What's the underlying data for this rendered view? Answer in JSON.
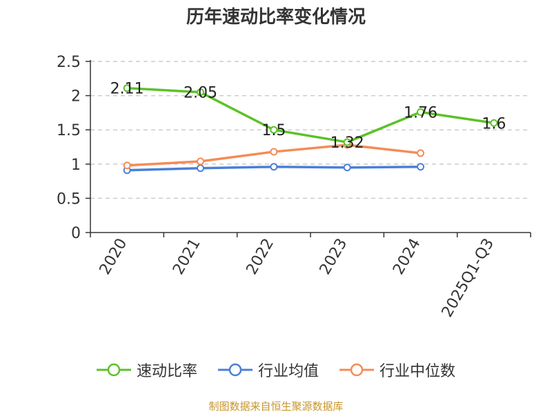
{
  "title": "历年速动比率变化情况",
  "source_note": "制图数据来自恒生聚源数据库",
  "colors": {
    "速动比率": "#5cc227",
    "行业均值": "#4a7fd9",
    "行业中位数": "#f48c56"
  },
  "chart_data": {
    "type": "line",
    "categories": [
      "2020",
      "2021",
      "2022",
      "2023",
      "2024",
      "2025Q1-Q3"
    ],
    "ylim": [
      0,
      2.5
    ],
    "yticks": [
      "0",
      "0.5",
      "1",
      "1.5",
      "2",
      "2.5"
    ],
    "grid": true,
    "legend_position": "bottom",
    "series": [
      {
        "name": "速动比率",
        "values": [
          2.11,
          2.05,
          1.5,
          1.32,
          1.76,
          1.6
        ],
        "labels": [
          "2.11",
          "2.05",
          "1.5",
          "1.32",
          "1.76",
          "1.6"
        ]
      },
      {
        "name": "行业均值",
        "values": [
          0.91,
          0.94,
          0.96,
          0.95,
          0.96,
          null
        ]
      },
      {
        "name": "行业中位数",
        "values": [
          0.98,
          1.04,
          1.18,
          1.28,
          1.16,
          null
        ]
      }
    ]
  }
}
